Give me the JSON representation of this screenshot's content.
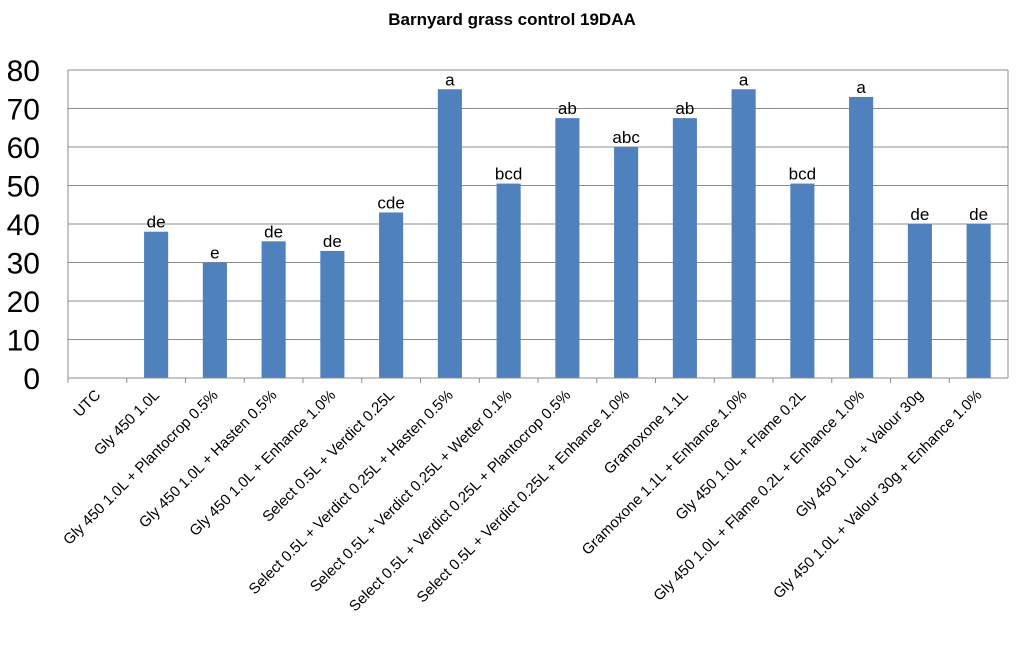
{
  "chart_data": {
    "type": "bar",
    "title": "Barnyard grass control 19DAA",
    "xlabel": "",
    "ylabel": "",
    "ylim": [
      0,
      80
    ],
    "yticks": [
      0,
      10,
      20,
      30,
      40,
      50,
      60,
      70,
      80
    ],
    "grid": true,
    "legend": "none",
    "bar_color": "#4F81BD",
    "categories": [
      "UTC",
      "Gly 450 1.0L",
      "Gly 450 1.0L + Plantocrop 0.5%",
      "Gly 450 1.0L + Hasten 0.5%",
      "Gly 450 1.0L + Enhance 1.0%",
      "Select 0.5L + Verdict 0.25L",
      "Select 0.5L + Verdict 0.25L + Hasten 0.5%",
      "Select 0.5L + Verdict 0.25L + Wetter 0.1%",
      "Select 0.5L + Verdict 0.25L + Plantocrop 0.5%",
      "Select 0.5L + Verdict 0.25L + Enhance 1.0%",
      "Gramoxone 1.1L",
      "Gramoxone 1.1L + Enhance 1.0%",
      "Gly 450 1.0L + Flame 0.2L",
      "Gly 450 1.0L + Flame 0.2L + Enhance 1.0%",
      "Gly 450 1.0L + Valour 30g",
      "Gly 450 1.0L + Valour 30g + Enhance 1.0%"
    ],
    "values": [
      0,
      38,
      30,
      35.5,
      33,
      43,
      75,
      50.5,
      67.5,
      60,
      67.5,
      75,
      50.5,
      73,
      40,
      40
    ],
    "labels": [
      "",
      "de",
      "e",
      "de",
      "de",
      "cde",
      "a",
      "bcd",
      "ab",
      "abc",
      "ab",
      "a",
      "bcd",
      "a",
      "de",
      "de"
    ]
  }
}
